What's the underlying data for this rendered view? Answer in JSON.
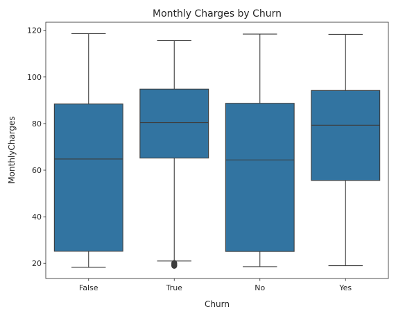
{
  "chart_data": {
    "type": "box",
    "title": "Monthly Charges by Churn",
    "xlabel": "Churn",
    "ylabel": "MonthlyCharges",
    "categories": [
      "False",
      "True",
      "No",
      "Yes"
    ],
    "ylim": [
      13.5,
      123.5
    ],
    "yticks": [
      20,
      40,
      60,
      80,
      100,
      120
    ],
    "grid": false,
    "box_color": "#3274a1",
    "line_color": "#3d3d3d",
    "boxes": [
      {
        "category": "False",
        "whisker_low": 18.3,
        "q1": 25.2,
        "median": 64.8,
        "q3": 88.4,
        "whisker_high": 118.6,
        "outliers": []
      },
      {
        "category": "True",
        "whisker_low": 21.0,
        "q1": 65.2,
        "median": 80.4,
        "q3": 94.8,
        "whisker_high": 115.6,
        "outliers": [
          18.9,
          19.1,
          19.3,
          19.6,
          19.9,
          20.2
        ]
      },
      {
        "category": "No",
        "whisker_low": 18.6,
        "q1": 25.1,
        "median": 64.4,
        "q3": 88.7,
        "whisker_high": 118.4,
        "outliers": []
      },
      {
        "category": "Yes",
        "whisker_low": 19.0,
        "q1": 55.6,
        "median": 79.3,
        "q3": 94.2,
        "whisker_high": 118.3,
        "outliers": []
      }
    ]
  }
}
